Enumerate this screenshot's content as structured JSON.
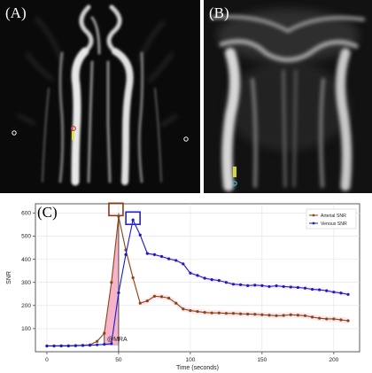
{
  "figure": {
    "panels": [
      {
        "label": "(A)"
      },
      {
        "label": "(B)"
      },
      {
        "label": "(C)"
      }
    ]
  },
  "colors": {
    "arterial": "#8b4513",
    "venous": "#1a1acd",
    "highlight_fill": "#f4a7c0",
    "box_arterial": "#8b3a1a",
    "box_venous": "#2424d0",
    "marker_red": "#e04040",
    "marker_yellow": "#e6e640",
    "marker_cyan": "#40c0e0"
  },
  "chart_data": {
    "type": "line",
    "xlabel": "Time (seconds)",
    "ylabel": "SNR",
    "xlim": [
      -8,
      218
    ],
    "ylim": [
      0,
      640
    ],
    "x_ticks": [
      0,
      50,
      100,
      150,
      200
    ],
    "y_ticks": [
      100,
      200,
      300,
      400,
      500,
      600
    ],
    "grid": true,
    "legend_position": "top-right",
    "annotation": "@MRA",
    "series": [
      {
        "name": "Arterial SNR",
        "color": "#8b4513",
        "x": [
          0,
          5,
          10,
          15,
          20,
          25,
          30,
          35,
          40,
          45,
          50,
          55,
          60,
          65,
          70,
          75,
          80,
          85,
          90,
          95,
          100,
          105,
          110,
          115,
          120,
          125,
          130,
          135,
          140,
          145,
          150,
          155,
          160,
          165,
          170,
          175,
          180,
          185,
          190,
          195,
          200,
          205,
          210
        ],
        "values": [
          25,
          25,
          26,
          26,
          27,
          28,
          30,
          45,
          80,
          300,
          585,
          440,
          320,
          210,
          220,
          240,
          238,
          232,
          210,
          185,
          178,
          174,
          170,
          168,
          168,
          166,
          166,
          164,
          163,
          162,
          160,
          158,
          156,
          157,
          160,
          158,
          156,
          150,
          145,
          142,
          142,
          138,
          134
        ]
      },
      {
        "name": "Venous SNR",
        "color": "#1a1acd",
        "x": [
          0,
          5,
          10,
          15,
          20,
          25,
          30,
          35,
          40,
          45,
          50,
          55,
          60,
          65,
          70,
          75,
          80,
          85,
          90,
          95,
          100,
          105,
          110,
          115,
          120,
          125,
          130,
          135,
          140,
          145,
          150,
          155,
          160,
          165,
          170,
          175,
          180,
          185,
          190,
          195,
          200,
          205,
          210
        ],
        "values": [
          25,
          25,
          25,
          25,
          26,
          27,
          28,
          30,
          32,
          35,
          255,
          420,
          570,
          505,
          425,
          420,
          412,
          402,
          395,
          380,
          340,
          330,
          318,
          312,
          308,
          300,
          292,
          290,
          286,
          288,
          286,
          282,
          285,
          282,
          280,
          278,
          275,
          270,
          268,
          264,
          258,
          254,
          248
        ]
      }
    ]
  }
}
